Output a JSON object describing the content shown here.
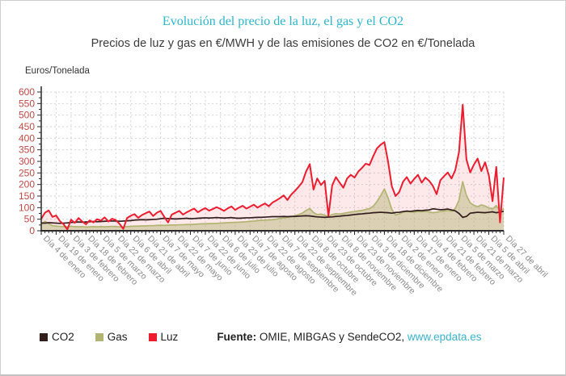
{
  "header": {
    "title": "Evolución del precio de la luz, el gas y el CO2",
    "subtitle": "Precios de luz y gas en €/MWH y de las emisiones de CO2 en €/Tonelada"
  },
  "footer": {
    "source_label": "Fuente:",
    "source_text": "OMIE, MIBGAS y SendeCO2,",
    "source_link": "www.epdata.es"
  },
  "chart_data": {
    "type": "line",
    "title": "Evolución del precio de la luz, el gas y el CO2",
    "unit_label": "Euros/Tonelada",
    "ylim": [
      0,
      600
    ],
    "y_tick_step": 50,
    "y_minor_step": 25,
    "points_per_tick": 4,
    "grid": "dashed",
    "legend_position": "bottom-left",
    "colors": {
      "grid": "#d6d6d6",
      "axis": "#2a2a2a",
      "y_labels": "#bf4a45",
      "x_labels": "#8a8a8a",
      "title": "#2cb5cb",
      "link": "#3ab3cd"
    },
    "x_tick_labels": [
      "Día 4 de enero",
      "Día 19 de enero",
      "Día 3 de febrero",
      "Día 18 de febrero",
      "Día 5 de marzo",
      "Día 22 de marzo",
      "Día 6 de abril",
      "Día 21 de abril",
      "Día 7 de mayo",
      "Día 22 de mayo",
      "Día 7 de junio",
      "Día 22 de junio",
      "Día 6 de julio",
      "Día 23 de julio",
      "Día 7 de agosto",
      "Día 22 de agosto",
      "Día 7 de septiembre",
      "Día 22 de septiembre",
      "Día 8 de octubre",
      "Día 23 de octubre",
      "Día 8 de noviembre",
      "Día 23 de noviembre",
      "Día 3 de diciembre",
      "Día 18 de diciembre",
      "Día 2 de enero",
      "Día 17 de enero",
      "Día 4 de febrero",
      "Día 21 de febrero",
      "Día 5 de marzo",
      "Día 21 de marzo",
      "Día 5 de abril",
      "Día 27 de abril"
    ],
    "series": [
      {
        "name": "CO2",
        "color": "#321c1c",
        "fill": "none",
        "values": [
          34,
          33,
          35,
          34,
          33,
          32,
          33,
          34,
          36,
          37,
          38,
          37,
          38,
          39,
          40,
          39,
          40,
          41,
          42,
          42,
          42,
          41,
          42,
          43,
          44,
          46,
          47,
          48,
          47,
          48,
          49,
          50,
          52,
          54,
          53,
          52,
          51,
          52,
          53,
          54,
          52,
          53,
          54,
          55,
          56,
          55,
          56,
          57,
          56,
          55,
          56,
          57,
          55,
          54,
          55,
          56,
          56,
          57,
          58,
          58,
          59,
          60,
          61,
          61,
          61,
          62,
          61,
          62,
          62,
          63,
          64,
          65,
          64,
          62,
          60,
          59,
          58,
          59,
          60,
          62,
          63,
          65,
          66,
          68,
          70,
          72,
          73,
          75,
          76,
          78,
          79,
          80,
          79,
          78,
          76,
          79,
          80,
          83,
          85,
          84,
          86,
          88,
          87,
          89,
          90,
          95,
          93,
          91,
          92,
          94,
          90,
          86,
          75,
          58,
          62,
          76,
          78,
          80,
          79,
          78,
          80,
          82,
          78,
          81,
          84
        ]
      },
      {
        "name": "Gas",
        "color": "#b2b472",
        "fill": "rgba(178,180,114,0.45)",
        "values": [
          26,
          41,
          30,
          22,
          20,
          19,
          18,
          17,
          19,
          18,
          17,
          18,
          16,
          17,
          18,
          17,
          18,
          17,
          18,
          19,
          18,
          17,
          16,
          18,
          19,
          20,
          20,
          21,
          21,
          22,
          22,
          23,
          24,
          23,
          24,
          25,
          25,
          26,
          26,
          27,
          27,
          28,
          29,
          30,
          30,
          31,
          31,
          32,
          33,
          34,
          35,
          36,
          36,
          37,
          38,
          39,
          41,
          42,
          44,
          45,
          46,
          47,
          48,
          50,
          53,
          56,
          58,
          61,
          65,
          70,
          76,
          88,
          96,
          79,
          70,
          72,
          67,
          62,
          70,
          74,
          72,
          75,
          78,
          81,
          83,
          86,
          88,
          92,
          96,
          106,
          126,
          152,
          181,
          142,
          92,
          68,
          73,
          80,
          85,
          82,
          80,
          83,
          82,
          84,
          82,
          78,
          80,
          83,
          85,
          88,
          84,
          96,
          132,
          212,
          152,
          121,
          110,
          104,
          112,
          107,
          99,
          94,
          109,
          84,
          96
        ]
      },
      {
        "name": "Luz",
        "color": "#ed1c2e",
        "fill": "rgba(237,28,46,0.10)",
        "values": [
          52,
          78,
          88,
          60,
          66,
          42,
          28,
          6,
          48,
          34,
          55,
          40,
          28,
          45,
          36,
          50,
          44,
          58,
          40,
          52,
          46,
          30,
          8,
          55,
          65,
          72,
          56,
          68,
          76,
          83,
          64,
          78,
          86,
          60,
          36,
          70,
          78,
          86,
          70,
          80,
          88,
          96,
          80,
          90,
          98,
          87,
          94,
          102,
          95,
          86,
          97,
          105,
          90,
          100,
          108,
          96,
          104,
          113,
          100,
          110,
          118,
          106,
          122,
          131,
          141,
          153,
          133,
          156,
          172,
          190,
          210,
          256,
          288,
          178,
          226,
          198,
          216,
          64,
          196,
          232,
          208,
          186,
          226,
          242,
          230,
          256,
          272,
          290,
          284,
          322,
          356,
          372,
          383,
          298,
          192,
          150,
          168,
          212,
          232,
          204,
          224,
          242,
          208,
          230,
          216,
          194,
          158,
          218,
          236,
          252,
          226,
          262,
          340,
          545,
          308,
          252,
          286,
          312,
          258,
          296,
          240,
          128,
          276,
          36,
          230
        ]
      }
    ]
  }
}
